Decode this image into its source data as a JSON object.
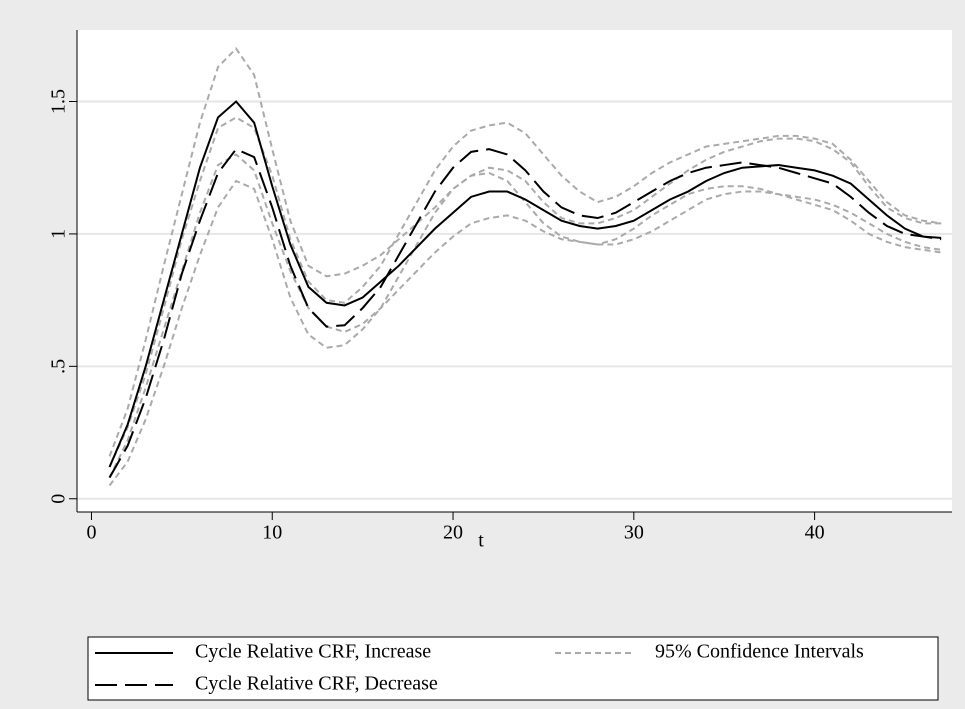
{
  "chart_data": {
    "type": "line",
    "xlabel": "t",
    "x": [
      1,
      2,
      3,
      4,
      5,
      6,
      7,
      8,
      9,
      10,
      11,
      12,
      13,
      14,
      15,
      16,
      17,
      18,
      19,
      20,
      21,
      22,
      23,
      24,
      25,
      26,
      27,
      28,
      29,
      30,
      31,
      32,
      33,
      34,
      35,
      36,
      37,
      38,
      39,
      40,
      41,
      42,
      43,
      44,
      45,
      46,
      47
    ],
    "xlim": [
      -0.8,
      47.6
    ],
    "xticks": [
      0,
      10,
      20,
      30,
      40
    ],
    "ylim": [
      -0.05,
      1.77
    ],
    "yticks": [
      0,
      {
        "value": 0.5,
        "label": ".5"
      },
      1,
      1.5
    ],
    "grid": true,
    "series": [
      {
        "name": "Cycle Relative CRF, Increase",
        "color": "#000000",
        "dash": "solid",
        "values": [
          0.12,
          0.28,
          0.5,
          0.75,
          1.0,
          1.25,
          1.44,
          1.5,
          1.42,
          1.18,
          0.96,
          0.8,
          0.74,
          0.73,
          0.76,
          0.82,
          0.88,
          0.95,
          1.02,
          1.08,
          1.14,
          1.16,
          1.16,
          1.13,
          1.09,
          1.05,
          1.03,
          1.02,
          1.03,
          1.05,
          1.09,
          1.13,
          1.16,
          1.2,
          1.23,
          1.25,
          1.255,
          1.26,
          1.25,
          1.24,
          1.22,
          1.19,
          1.13,
          1.07,
          1.02,
          0.99,
          0.985
        ]
      },
      {
        "name": "Cycle Relative CRF, Decrease",
        "color": "#000000",
        "dash": "long",
        "values": [
          0.08,
          0.2,
          0.38,
          0.6,
          0.85,
          1.05,
          1.23,
          1.32,
          1.29,
          1.1,
          0.88,
          0.72,
          0.65,
          0.655,
          0.72,
          0.8,
          0.92,
          1.04,
          1.16,
          1.25,
          1.31,
          1.32,
          1.3,
          1.24,
          1.16,
          1.1,
          1.07,
          1.06,
          1.08,
          1.12,
          1.16,
          1.2,
          1.23,
          1.25,
          1.26,
          1.27,
          1.26,
          1.25,
          1.23,
          1.21,
          1.19,
          1.14,
          1.08,
          1.03,
          1.0,
          0.99,
          0.98
        ]
      }
    ],
    "ci": {
      "name": "95% Confidence Intervals",
      "color": "#aaaaaa",
      "dash": "short",
      "lines": [
        [
          0.16,
          0.34,
          0.6,
          0.88,
          1.15,
          1.42,
          1.63,
          1.7,
          1.6,
          1.32,
          1.05,
          0.88,
          0.84,
          0.85,
          0.88,
          0.92,
          0.98,
          1.04,
          1.1,
          1.17,
          1.22,
          1.25,
          1.24,
          1.2,
          1.12,
          1.06,
          1.04,
          1.04,
          1.06,
          1.09,
          1.14,
          1.19,
          1.24,
          1.28,
          1.31,
          1.33,
          1.35,
          1.36,
          1.36,
          1.35,
          1.32,
          1.27,
          1.18,
          1.1,
          1.06,
          1.04,
          1.04
        ],
        [
          0.08,
          0.22,
          0.42,
          0.64,
          0.86,
          1.08,
          1.26,
          1.3,
          1.24,
          1.04,
          0.86,
          0.72,
          0.65,
          0.63,
          0.66,
          0.72,
          0.79,
          0.86,
          0.93,
          0.99,
          1.04,
          1.06,
          1.07,
          1.05,
          1.01,
          0.98,
          0.97,
          0.96,
          0.96,
          0.98,
          1.01,
          1.05,
          1.09,
          1.13,
          1.15,
          1.16,
          1.16,
          1.15,
          1.14,
          1.13,
          1.11,
          1.08,
          1.04,
          1.0,
          0.97,
          0.95,
          0.94
        ],
        [
          0.12,
          0.27,
          0.47,
          0.72,
          0.98,
          1.2,
          1.4,
          1.44,
          1.4,
          1.22,
          0.98,
          0.82,
          0.75,
          0.74,
          0.8,
          0.88,
          1.0,
          1.12,
          1.24,
          1.33,
          1.39,
          1.41,
          1.42,
          1.38,
          1.3,
          1.22,
          1.16,
          1.12,
          1.14,
          1.18,
          1.23,
          1.27,
          1.3,
          1.33,
          1.34,
          1.35,
          1.36,
          1.37,
          1.37,
          1.36,
          1.34,
          1.28,
          1.2,
          1.12,
          1.07,
          1.05,
          1.04
        ],
        [
          0.05,
          0.14,
          0.3,
          0.5,
          0.72,
          0.92,
          1.1,
          1.2,
          1.17,
          0.98,
          0.76,
          0.62,
          0.57,
          0.58,
          0.64,
          0.72,
          0.84,
          0.96,
          1.08,
          1.17,
          1.22,
          1.23,
          1.2,
          1.12,
          1.04,
          0.99,
          0.97,
          0.96,
          0.98,
          1.02,
          1.07,
          1.11,
          1.15,
          1.17,
          1.18,
          1.18,
          1.17,
          1.15,
          1.13,
          1.11,
          1.09,
          1.05,
          1.0,
          0.97,
          0.95,
          0.94,
          0.93
        ]
      ]
    }
  }
}
